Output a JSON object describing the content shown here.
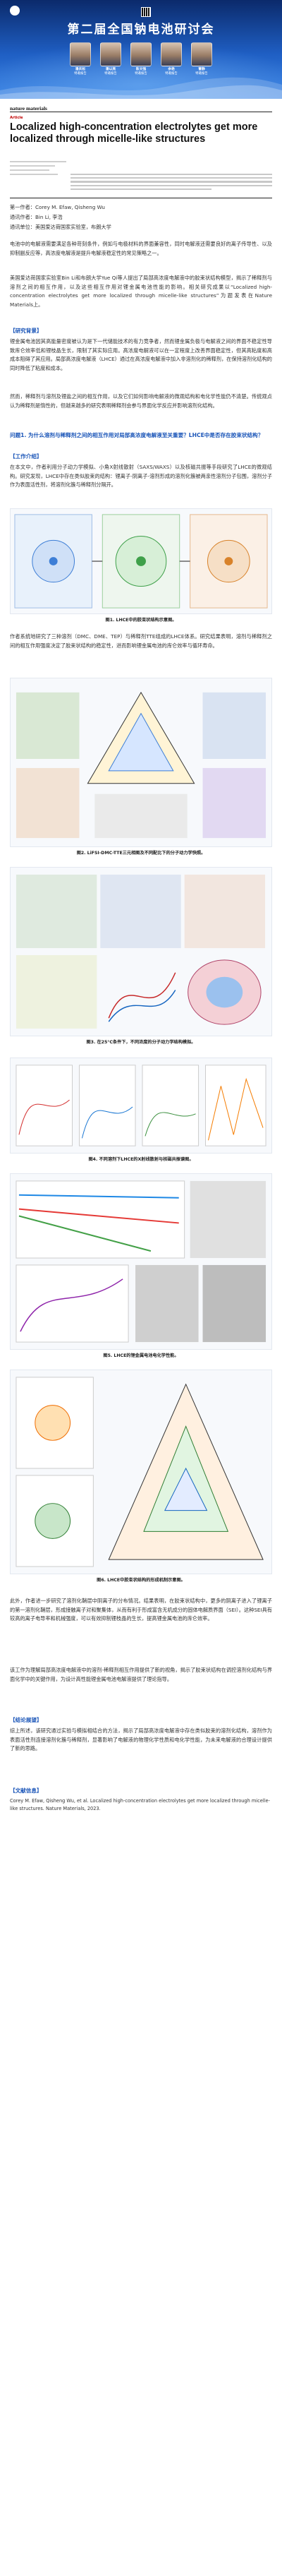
{
  "banner": {
    "title": "第二届全国钠电池研讨会",
    "experts": [
      {
        "name": "潘庆松",
        "role": "特邀报告"
      },
      {
        "name": "潘以亮",
        "role": "特邀报告"
      },
      {
        "name": "陈文强",
        "role": "特邀报告"
      },
      {
        "name": "余艳",
        "role": "特邀报告"
      },
      {
        "name": "曹静",
        "role": "特邀报告"
      }
    ]
  },
  "article": {
    "journal": "nature materials",
    "tag": "Article",
    "title": "Localized high-concentration electrolytes get more localized through micelle-like structures"
  },
  "info": {
    "first_author": "第一作者：Corey M. Efaw, Qisheng Wu",
    "corresponding": "通讯作者：Bin Li, 李浩",
    "unit": "通讯单位：美国爱达荷国家实验室，布朗大学"
  },
  "paragraphs": {
    "p1": "电池中的电解液需要满足各种苛刻条件，例如与电极材料的界面兼容性，同时电解液还需要良好的离子传导性、以及抑制副反应等，高浓度电解液是提升电解液稳定性的常见策略之一。",
    "p2": "美国爱达荷国家实验室Bin Li和布朗大学Yue Qi等人提出了局部高浓度电解液中的胶束状结构模型，揭示了稀释剂与溶剂之间的相互作用，以及这些相互作用对锂金属电池性能的影响。相关研究成果以“Localized high-concentration electrolytes get more localized through micelle-like structures”为题发表在Nature Materials上。",
    "s1": "【研究背景】",
    "p3": "锂金属电池因其高能量密度被认为是下一代储能技术的有力竞争者，然而锂金属负极与电解液之间的界面不稳定性导致库仑效率低和锂枝晶生长，限制了其实际应用。高浓度电解液可以在一定程度上改善界面稳定性，但其高粘度和高成本阻碍了其应用。局部高浓度电解液（LHCE）通过在高浓度电解液中加入非溶剂化的稀释剂，在保持溶剂化结构的同时降低了粘度和成本。",
    "p4": "然而，稀释剂与溶剂及锂盐之间的相互作用，以及它们如何影响电解液的微观结构和电化学性能仍不清楚。传统观点认为稀释剂是惰性的，但越来越多的研究表明稀释剂会参与界面化学反应并影响溶剂化结构。",
    "s2": "问题1. 为什么溶剂与稀释剂之间的相互作用对局部高浓度电解液至关重要？LHCE中是否存在胶束状结构？",
    "s3": "【工作介绍】",
    "p5": "在本文中，作者利用分子动力学模拟、小角X射线散射（SAXS/WAXS）以及核磁共振等手段研究了LHCE的微观结构。研究发现，LHCE中存在类似胶束的结构：锂离子-阴离子-溶剂形成的溶剂化簇被两亲性溶剂分子包围，溶剂分子作为表面活性剂，将溶剂化簇与稀释剂分隔开。",
    "cap1": "图1. LHCE中的胶束状结构示意图。",
    "p6": "作者系统地研究了三种溶剂（DMC、DME、TEP）与稀释剂TTE组成的LHCE体系。研究结果表明，溶剂与稀释剂之间的相互作用强度决定了胶束状结构的稳定性，进而影响锂金属电池的库仑效率与循环寿命。",
    "cap2": "图2. LiFSI-DMC-TTE三元相图及不同配比下的分子动力学快照。",
    "cap3": "图3. 在25°C条件下，不同浓度的分子动力学结构模拟。",
    "cap4": "图4. 不同溶剂下LHCE的X射线散射与核磁共振谱图。",
    "cap5": "图5. LHCE的锂金属电池电化学性能。",
    "cap6": "图6. LHCE中胶束状结构的形成机制示意图。",
    "p7": "此外，作者进一步研究了溶剂化鞘层中阴离子的分布情况。结果表明，在胶束状结构中，更多的阴离子进入了锂离子的第一溶剂化鞘层，形成接触离子对和聚集体，从而有利于形成富含无机成分的固体电解质界面（SEI）。这种SEI具有较高的离子电导率和机械强度，可以有效抑制锂枝晶的生长，提高锂金属电池的库仑效率。",
    "p8": "该工作为理解局部高浓度电解液中的溶剂-稀释剂相互作用提供了新的视角，揭示了胶束状结构在调控溶剂化结构与界面化学中的关键作用，为设计高性能锂金属电池电解液提供了理论指导。",
    "s4": "【结论展望】",
    "p9": "综上所述，该研究通过实验与模拟相结合的方法，揭示了局部高浓度电解液中存在类似胶束的溶剂化结构，溶剂作为表面活性剂连接溶剂化簇与稀释剂，显著影响了电解液的物理化学性质和电化学性能，为未来电解液的合理设计提供了新的思路。",
    "s5": "【文献信息】",
    "ref": "Corey M. Efaw, Qisheng Wu, et al. Localized high-concentration electrolytes get more localized through micelle-like structures. Nature Materials, 2023."
  }
}
